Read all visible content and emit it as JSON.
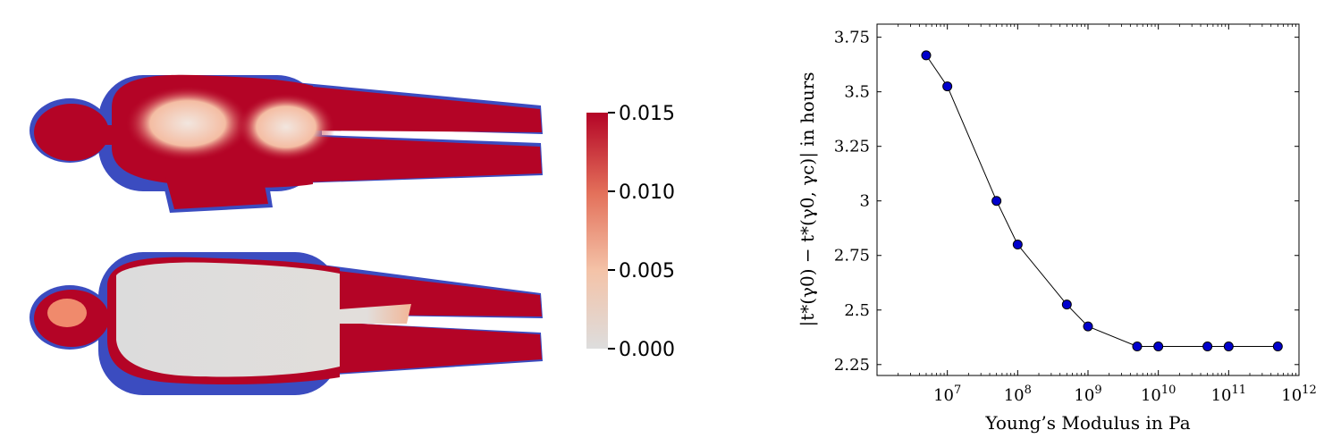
{
  "colorbar": {
    "ticks": [
      "0.015",
      "0.010",
      "0.005",
      "0.000"
    ],
    "tick_values": [
      0.015,
      0.01,
      0.005,
      0.0
    ],
    "min": 0.0,
    "max": 0.015,
    "colors": {
      "high": "#b40426",
      "mid": "#f08a6c",
      "low": "#dddddd",
      "under": "#3b4cc0"
    }
  },
  "chart_data": {
    "type": "line",
    "x_scale": "log",
    "xlabel": "Young’s Modulus in Pa",
    "ylabel": "|t*(γ0) − t*(γ0, γc)| in hours",
    "xlim": [
      1000000.0,
      1000000000000.0
    ],
    "ylim": [
      2.2,
      3.81
    ],
    "x_tick_labels": [
      "10^7",
      "10^8",
      "10^9",
      "10^10",
      "10^11",
      "10^12"
    ],
    "y_tick_labels": [
      "2.25",
      "2.5",
      "2.75",
      "3",
      "3.25",
      "3.5",
      "3.75"
    ],
    "y_ticks": [
      2.25,
      2.5,
      2.75,
      3,
      3.25,
      3.5,
      3.75
    ],
    "series": [
      {
        "x": [
          5000000.0,
          10000000.0,
          50000000.0,
          100000000.0,
          500000000.0,
          1000000000.0,
          5000000000.0,
          10000000000.0,
          50000000000.0,
          100000000000.0,
          500000000000.0
        ],
        "y": [
          3.667,
          3.525,
          3.0,
          2.8,
          2.525,
          2.425,
          2.333,
          2.333,
          2.333,
          2.333,
          2.333
        ],
        "marker_color": "#0000cc",
        "line_color": "#000000"
      }
    ]
  }
}
